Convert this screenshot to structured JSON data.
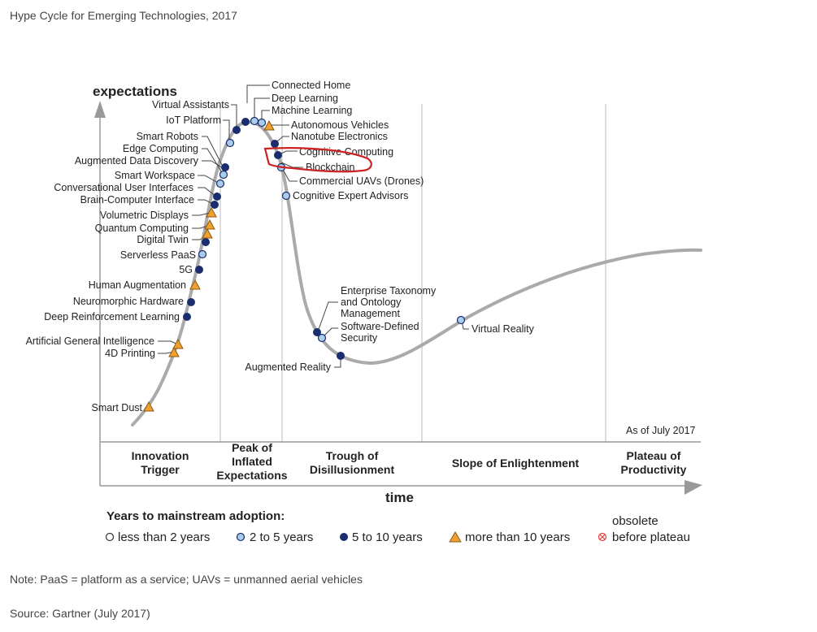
{
  "title": "Hype Cycle for Emerging Technologies, 2017",
  "axis": {
    "y_label": "expectations",
    "x_label": "time"
  },
  "as_of": "As of July 2017",
  "phases": {
    "innovation": [
      "Innovation",
      "Trigger"
    ],
    "peak": [
      "Peak of",
      "Inflated",
      "Expectations"
    ],
    "trough": [
      "Trough of",
      "Disillusionment"
    ],
    "slope": [
      "Slope of Enlightenment"
    ],
    "plateau": [
      "Plateau of",
      "Productivity"
    ]
  },
  "legend": {
    "title": "Years to mainstream adoption:",
    "items": [
      "less than 2 years",
      "2 to 5 years",
      "5 to 10 years",
      "more than 10 years"
    ],
    "obsolete": [
      "obsolete",
      "before plateau"
    ]
  },
  "colors": {
    "less_than_2": "#ffffff",
    "two_to_5": "#a9cdea",
    "five_to_10": "#1a2d6e",
    "more_than_10": "#f0a030",
    "obsolete": "#e04040",
    "curve": "#aaaaaa",
    "highlight": "#cc2222"
  },
  "technologies": {
    "virtual_assistants": "Virtual Assistants",
    "iot_platform": "IoT Platform",
    "smart_robots": "Smart Robots",
    "edge_computing": "Edge Computing",
    "augmented_data_discovery": "Augmented Data Discovery",
    "smart_workspace": "Smart Workspace",
    "conversational_ui": "Conversational User Interfaces",
    "brain_computer": "Brain-Computer Interface",
    "volumetric_displays": "Volumetric Displays",
    "quantum_computing": "Quantum Computing",
    "digital_twin": "Digital Twin",
    "serverless_paas": "Serverless PaaS",
    "five_g": "5G",
    "human_augmentation": "Human Augmentation",
    "neuromorphic": "Neuromorphic Hardware",
    "deep_rl": "Deep Reinforcement Learning",
    "agi": "Artificial General Intelligence",
    "printing_4d": "4D Printing",
    "smart_dust": "Smart Dust",
    "connected_home": "Connected Home",
    "deep_learning": "Deep Learning",
    "machine_learning": "Machine Learning",
    "autonomous_vehicles": "Autonomous Vehicles",
    "nanotube": "Nanotube Electronics",
    "cognitive_computing": "Cognitive Computing",
    "blockchain": "Blockchain",
    "commercial_uavs": "Commercial UAVs (Drones)",
    "cognitive_expert": "Cognitive Expert Advisors",
    "enterprise_taxonomy": [
      "Enterprise Taxonomy",
      "and Ontology",
      "Management"
    ],
    "software_defined_security": [
      "Software-Defined",
      "Security"
    ],
    "augmented_reality": "Augmented Reality",
    "virtual_reality": "Virtual Reality"
  },
  "note": "Note: PaaS = platform as a service; UAVs = unmanned aerial vehicles",
  "source": "Source: Gartner (July 2017)"
}
